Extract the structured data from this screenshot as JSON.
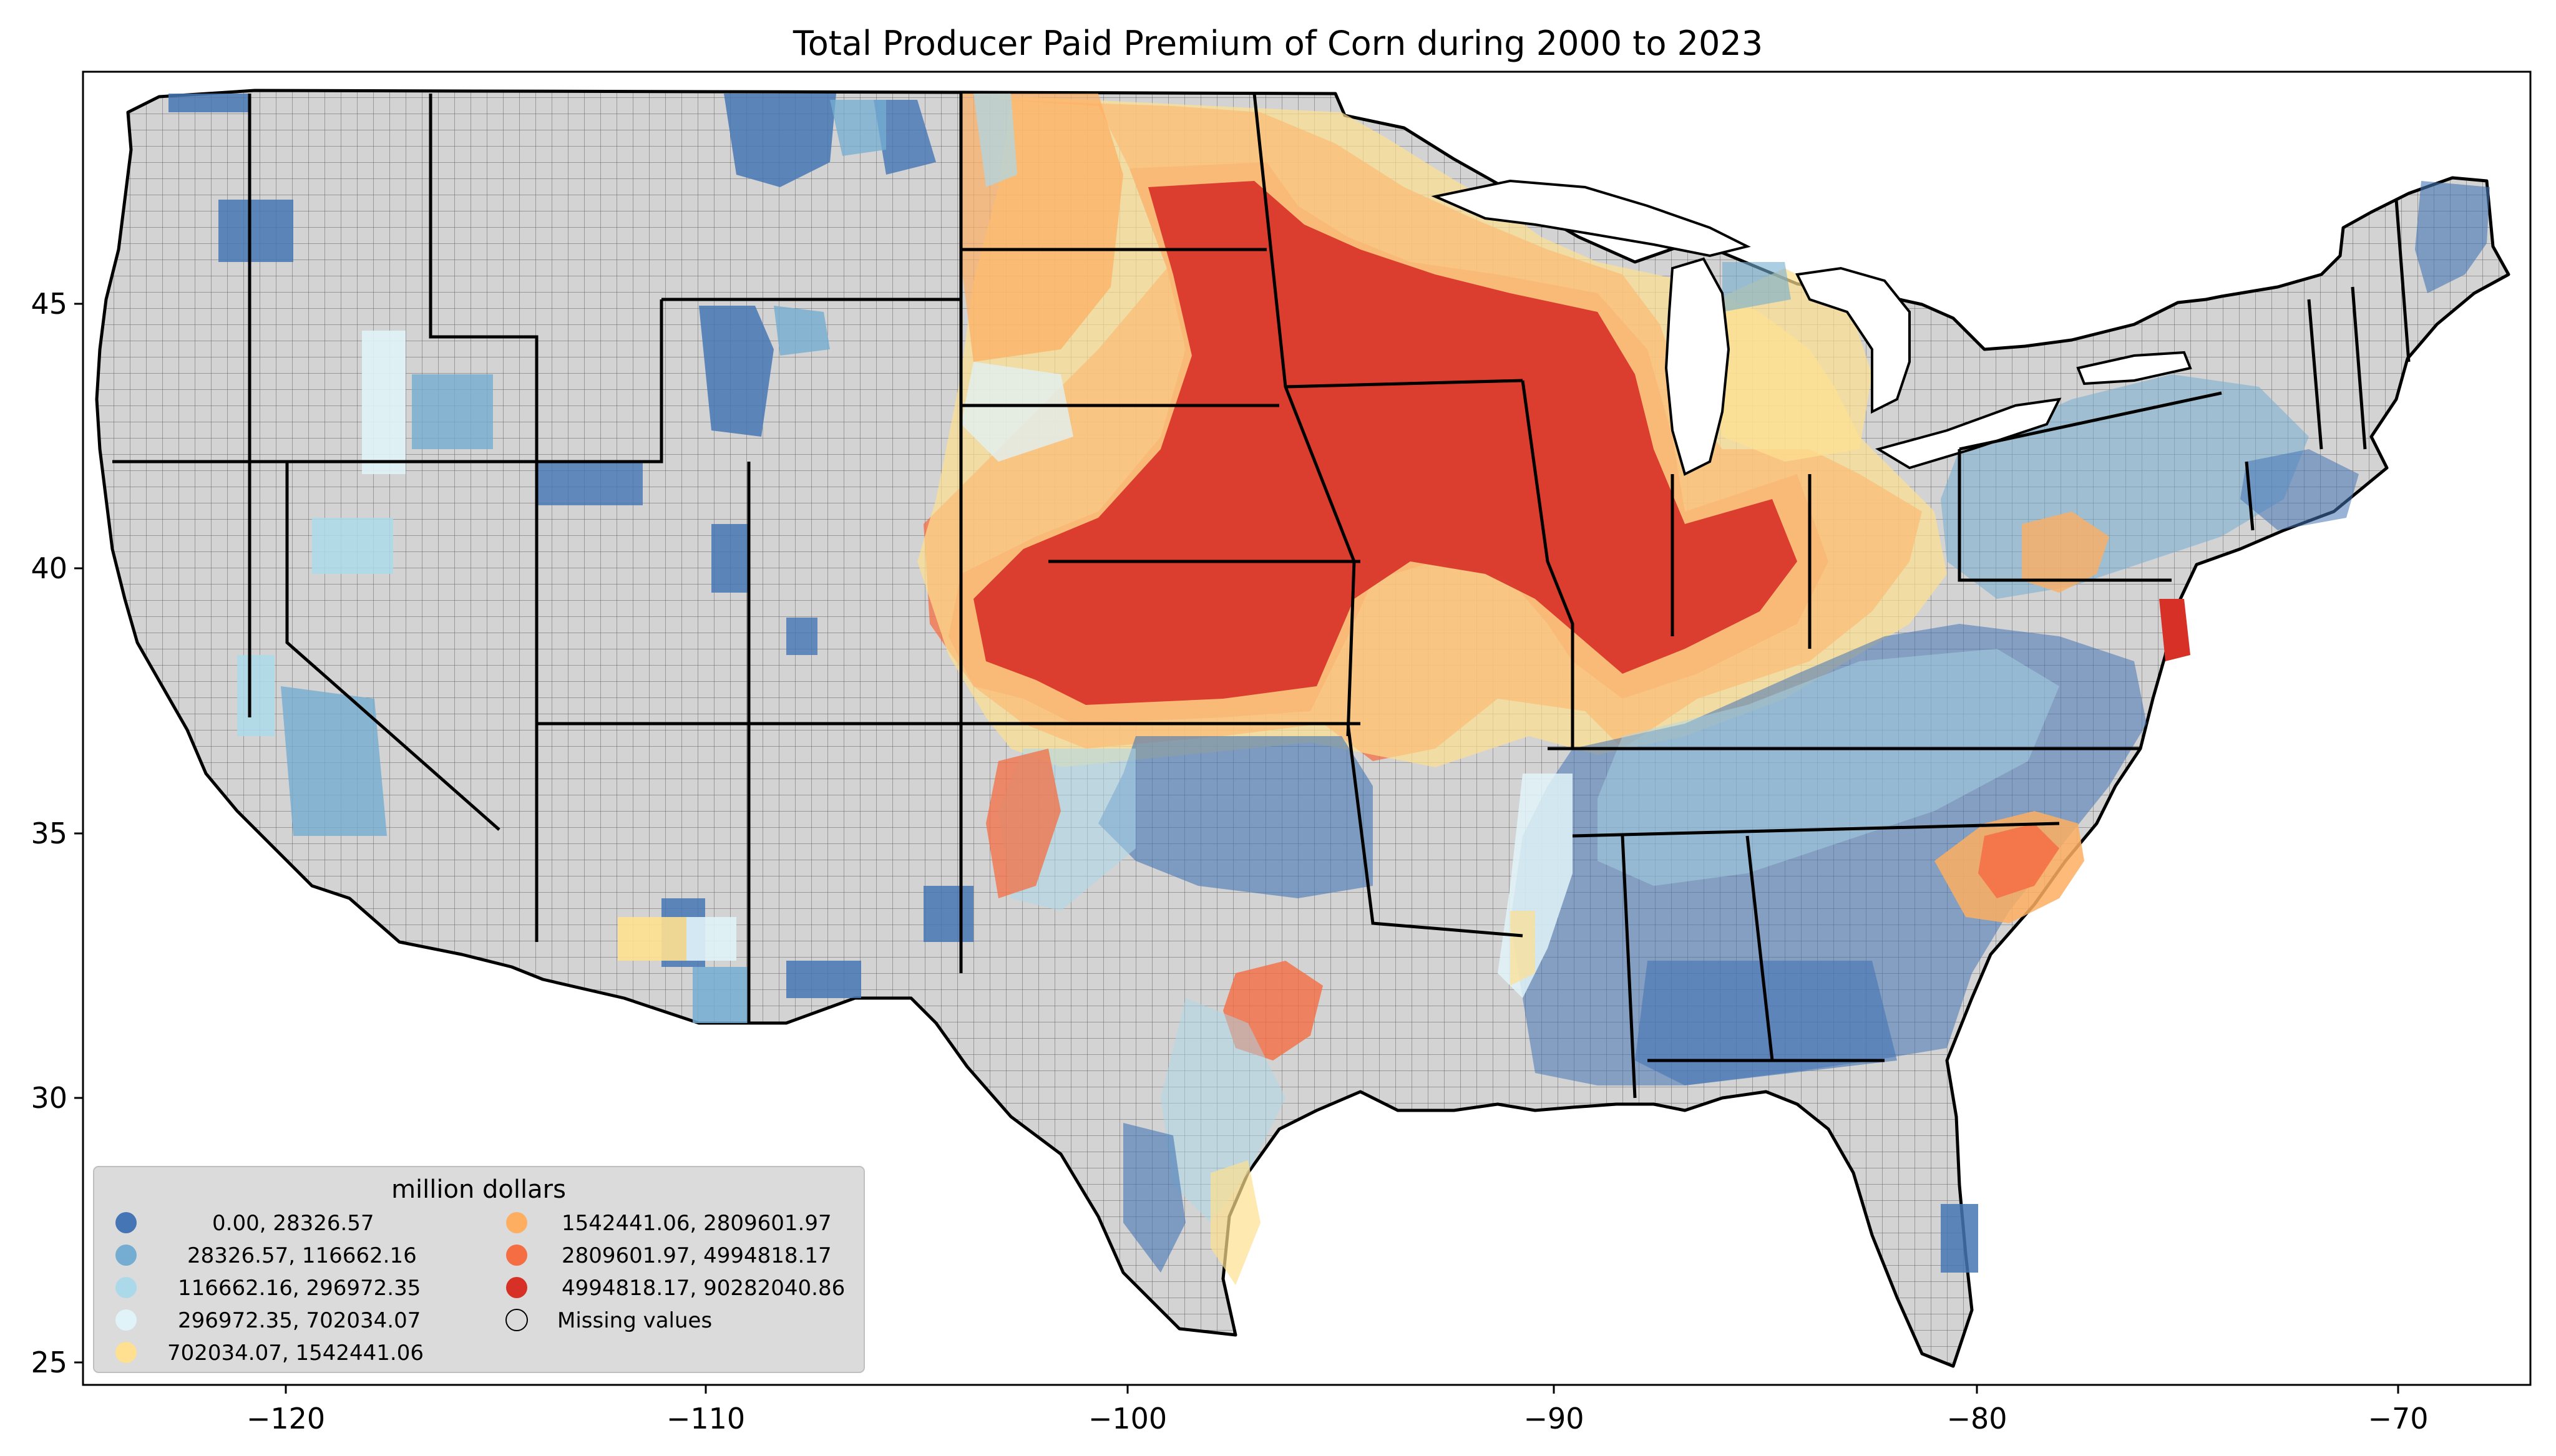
{
  "title": "Total Producer Paid Premium of Corn during 2000 to 2023",
  "axes": {
    "x_ticks": [
      "−120",
      "−110",
      "−100",
      "−90",
      "−80",
      "−70"
    ],
    "y_ticks": [
      "45",
      "40",
      "35",
      "30",
      "25"
    ],
    "x_range": [
      -125,
      -66.5
    ],
    "y_range": [
      24.5,
      49.3
    ]
  },
  "legend": {
    "title": "million dollars",
    "items": [
      {
        "label": "0.00,    28326.57",
        "color": "#4575b4"
      },
      {
        "label": "28326.57,   116662.16",
        "color": "#74add1"
      },
      {
        "label": "116662.16,   296972.35",
        "color": "#abd9e9"
      },
      {
        "label": "296972.35,   702034.07",
        "color": "#e0f3f8"
      },
      {
        "label": "702034.07,  1542441.06",
        "color": "#fee090"
      },
      {
        "label": "1542441.06,  2809601.97",
        "color": "#fdae61"
      },
      {
        "label": "2809601.97,  4994818.17",
        "color": "#f46d43"
      },
      {
        "label": "4994818.17, 90282040.86",
        "color": "#d73027"
      },
      {
        "label": "Missing values",
        "color": "none"
      }
    ]
  },
  "colors": {
    "missing": "#d3d3d3",
    "legend_bg": "#d9d9d9"
  }
}
